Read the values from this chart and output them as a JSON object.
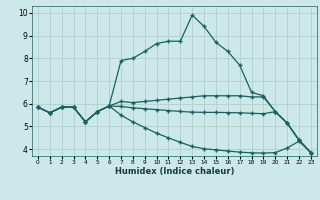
{
  "xlabel": "Humidex (Indice chaleur)",
  "background_color": "#cde8e8",
  "grid_color": "#afd0d0",
  "line_color": "#1a6060",
  "xlim": [
    -0.5,
    23.5
  ],
  "ylim": [
    3.7,
    10.3
  ],
  "yticks": [
    4,
    5,
    6,
    7,
    8,
    9,
    10
  ],
  "xticks": [
    0,
    1,
    2,
    3,
    4,
    5,
    6,
    7,
    8,
    9,
    10,
    11,
    12,
    13,
    14,
    15,
    16,
    17,
    18,
    19,
    20,
    21,
    22,
    23
  ],
  "series": [
    [
      5.85,
      5.6,
      5.85,
      5.85,
      5.2,
      5.65,
      5.9,
      7.9,
      8.0,
      8.3,
      8.65,
      8.75,
      8.75,
      9.9,
      9.4,
      8.7,
      8.3,
      7.7,
      6.5,
      6.35,
      5.65,
      5.15,
      4.4,
      3.85
    ],
    [
      5.85,
      5.6,
      5.85,
      5.85,
      5.2,
      5.65,
      5.9,
      6.1,
      6.05,
      6.1,
      6.15,
      6.2,
      6.25,
      6.3,
      6.35,
      6.35,
      6.35,
      6.35,
      6.3,
      6.3,
      5.65,
      5.15,
      4.4,
      3.85
    ],
    [
      5.85,
      5.6,
      5.85,
      5.85,
      5.2,
      5.65,
      5.9,
      5.88,
      5.82,
      5.78,
      5.74,
      5.7,
      5.66,
      5.63,
      5.62,
      5.62,
      5.61,
      5.6,
      5.58,
      5.56,
      5.65,
      5.15,
      4.4,
      3.85
    ],
    [
      5.85,
      5.6,
      5.85,
      5.85,
      5.2,
      5.65,
      5.9,
      5.5,
      5.2,
      4.95,
      4.7,
      4.5,
      4.3,
      4.12,
      4.02,
      3.97,
      3.92,
      3.87,
      3.84,
      3.83,
      3.85,
      4.05,
      4.35,
      3.85
    ]
  ]
}
